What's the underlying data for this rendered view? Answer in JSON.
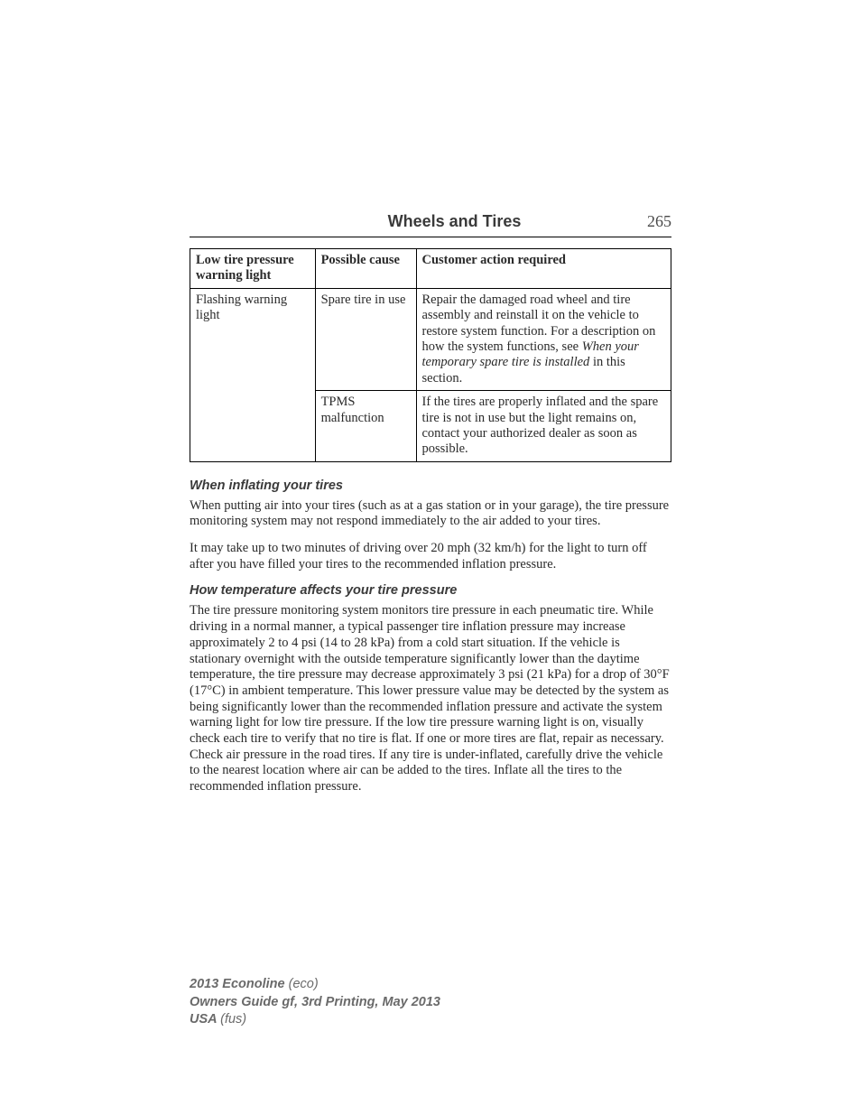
{
  "header": {
    "title": "Wheels and Tires",
    "page_number": "265"
  },
  "table": {
    "headers": [
      "Low tire pressure warning light",
      "Possible cause",
      "Customer action required"
    ],
    "row_group_label": "Flashing warning light",
    "rows": [
      {
        "cause": "Spare tire in use",
        "action_pre": "Repair the damaged road wheel and tire assembly and reinstall it on the vehicle to restore system function. For a description on how the system functions, see ",
        "action_italic": "When your temporary spare tire is installed",
        "action_post": " in this section."
      },
      {
        "cause": "TPMS malfunction",
        "action": "If the tires are properly inflated and the spare tire is not in use but the light remains on, contact your authorized dealer as soon as possible."
      }
    ]
  },
  "sections": [
    {
      "heading": "When inflating your tires",
      "paragraphs": [
        "When putting air into your tires (such as at a gas station or in your garage), the tire pressure monitoring system may not respond immediately to the air added to your tires.",
        "It may take up to two minutes of driving over 20 mph (32 km/h) for the light to turn off after you have filled your tires to the recommended inflation pressure."
      ]
    },
    {
      "heading": "How temperature affects your tire pressure",
      "paragraphs": [
        "The tire pressure monitoring system monitors tire pressure in each pneumatic tire. While driving in a normal manner, a typical passenger tire inflation pressure may increase approximately 2 to 4 psi (14 to 28 kPa) from a cold start situation. If the vehicle is stationary overnight with the outside temperature significantly lower than the daytime temperature, the tire pressure may decrease approximately 3 psi (21 kPa) for a drop of 30°F (17°C) in ambient temperature. This lower pressure value may be detected by the system as being significantly lower than the recommended inflation pressure and activate the system warning light for low tire pressure. If the low tire pressure warning light is on, visually check each tire to verify that no tire is flat. If one or more tires are flat, repair as necessary. Check air pressure in the road tires. If any tire is under-inflated, carefully drive the vehicle to the nearest location where air can be added to the tires. Inflate all the tires to the recommended inflation pressure."
      ]
    }
  ],
  "footer": {
    "line1_bold": "2013 Econoline",
    "line1_paren": "(eco)",
    "line2": "Owners Guide gf, 3rd Printing, May 2013",
    "line3_bold": "USA",
    "line3_paren": "(fus)"
  }
}
